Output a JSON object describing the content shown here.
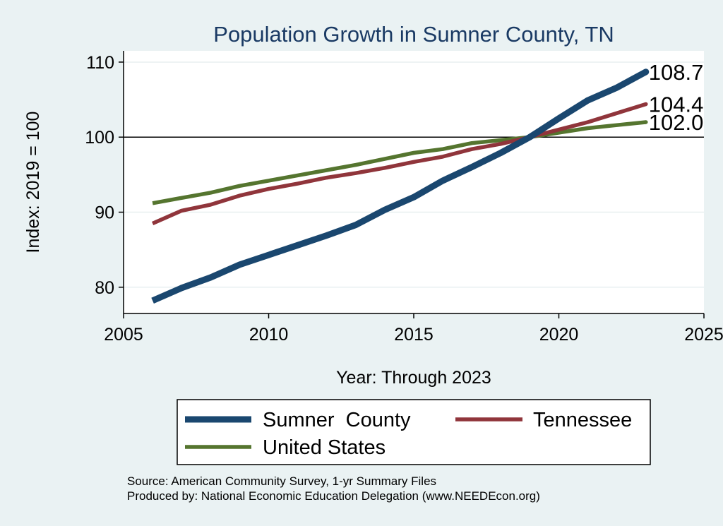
{
  "chart_data": {
    "type": "line",
    "title": "Population Growth in Sumner County, TN",
    "xlabel": "Year: Through 2023",
    "ylabel": "Index: 2019 = 100",
    "xlim": [
      2005,
      2025
    ],
    "ylim": [
      76.5,
      111.5
    ],
    "xticks": [
      2005,
      2010,
      2015,
      2020,
      2025
    ],
    "yticks": [
      80,
      90,
      100,
      110
    ],
    "reference_line": 100,
    "x": [
      2006,
      2007,
      2008,
      2009,
      2010,
      2011,
      2012,
      2013,
      2014,
      2015,
      2016,
      2017,
      2018,
      2019,
      2020,
      2021,
      2022,
      2023
    ],
    "series": [
      {
        "name": "Sumner  County",
        "color": "#1a476f",
        "values": [
          78.2,
          79.9,
          81.3,
          83.0,
          84.3,
          85.6,
          86.9,
          88.3,
          90.3,
          92.0,
          94.2,
          96.0,
          97.9,
          100.0,
          102.5,
          104.9,
          106.6,
          108.7
        ],
        "end_label": "108.7"
      },
      {
        "name": "Tennessee",
        "color": "#90353b",
        "values": [
          88.5,
          90.2,
          91.0,
          92.2,
          93.1,
          93.8,
          94.6,
          95.2,
          95.9,
          96.7,
          97.4,
          98.4,
          99.1,
          100.0,
          101.0,
          102.0,
          103.2,
          104.4
        ],
        "end_label": "104.4"
      },
      {
        "name": "United States",
        "color": "#55752f",
        "values": [
          91.2,
          91.9,
          92.6,
          93.5,
          94.2,
          94.9,
          95.6,
          96.3,
          97.1,
          97.9,
          98.4,
          99.2,
          99.6,
          100.0,
          100.6,
          101.2,
          101.6,
          102.0
        ],
        "end_label": "102.0"
      }
    ]
  },
  "notes": {
    "source": "Source: American Community Survey, 1-yr Summary Files",
    "produced_by": "Produced by: National Economic Education Delegation (www.NEEDEcon.org)"
  }
}
